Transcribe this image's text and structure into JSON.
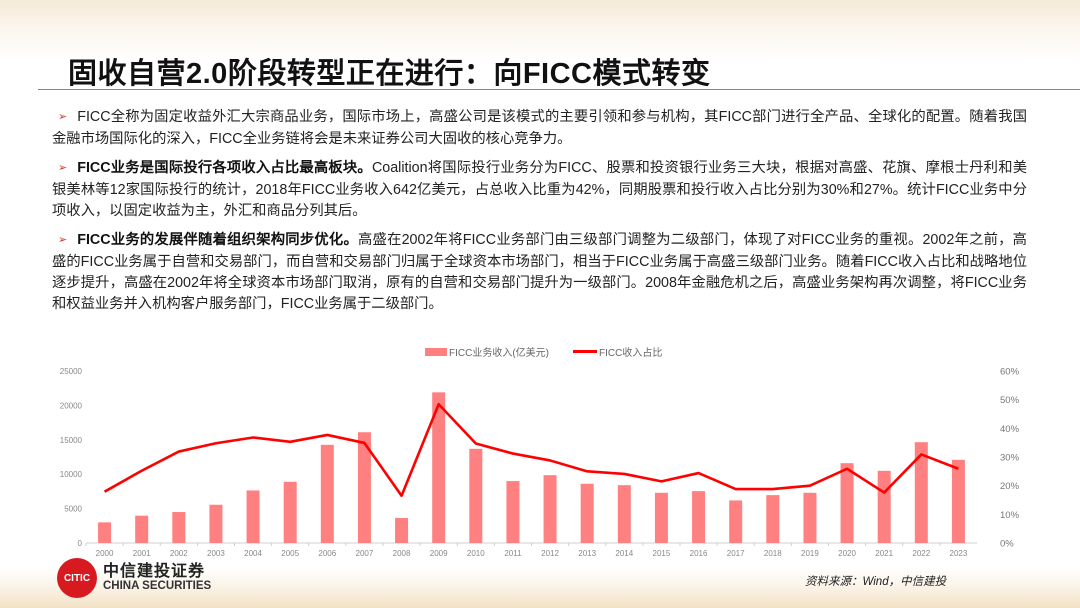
{
  "title": "固收自营2.0阶段转型正在进行：向FICC模式转变",
  "paragraphs": [
    {
      "bold": "",
      "text": "FICC全称为固定收益外汇大宗商品业务，国际市场上，高盛公司是该模式的主要引领和参与机构，其FICC部门进行全产品、全球化的配置。随着我国金融市场国际化的深入，FICC全业务链将会是未来证券公司大固收的核心竞争力。"
    },
    {
      "bold": "FICC业务是国际投行各项收入占比最高板块。",
      "text": "Coalition将国际投行业务分为FICC、股票和投资银行业务三大块，根据对高盛、花旗、摩根士丹利和美银美林等12家国际投行的统计，2018年FICC业务收入642亿美元，占总收入比重为42%，同期股票和投行收入占比分别为30%和27%。统计FICC业务中分项收入，以固定收益为主，外汇和商品分列其后。"
    },
    {
      "bold": "FICC业务的发展伴随着组织架构同步优化。",
      "text": "高盛在2002年将FICC业务部门由三级部门调整为二级部门，体现了对FICC业务的重视。2002年之前，高盛的FICC业务属于自营和交易部门，而自营和交易部门归属于全球资本市场部门，相当于FICC业务属于高盛三级部门业务。随着FICC收入占比和战略地位逐步提升，高盛在2002年将全球资本市场部门取消，原有的自营和交易部门提升为一级部门。2008年金融危机之后，高盛业务架构再次调整，将FICC业务和权益业务并入机构客户服务部门，FICC业务属于二级部门。"
    }
  ],
  "bullet_icon": "arrow-bullet-icon",
  "chart_data": {
    "type": "bar+line",
    "categories": [
      "2000",
      "2001",
      "2002",
      "2003",
      "2004",
      "2005",
      "2006",
      "2007",
      "2008",
      "2009",
      "2010",
      "2011",
      "2012",
      "2013",
      "2014",
      "2015",
      "2016",
      "2017",
      "2018",
      "2019",
      "2020",
      "2021",
      "2022",
      "2023"
    ],
    "series": [
      {
        "name": "FICC业务收入(亿美元)",
        "type": "bar",
        "axis": "left",
        "color": "#ff8080",
        "values": [
          3000,
          3970,
          4500,
          5560,
          7640,
          8900,
          14270,
          16100,
          3630,
          21900,
          13690,
          9000,
          9860,
          8610,
          8410,
          7300,
          7540,
          6190,
          6960,
          7300,
          11600,
          10490,
          14650,
          12090
        ]
      },
      {
        "name": "FICC收入占比",
        "type": "line",
        "axis": "right",
        "color": "#ff0000",
        "values": [
          17.9,
          25.2,
          31.9,
          34.8,
          36.8,
          35.3,
          37.7,
          34.9,
          16.5,
          48.4,
          34.7,
          31.2,
          28.8,
          25.0,
          24.1,
          21.5,
          24.4,
          18.8,
          18.8,
          20.0,
          25.9,
          17.6,
          30.9,
          25.9
        ]
      }
    ],
    "left_axis": {
      "ylim": [
        0,
        25000
      ],
      "ticks": [
        "0",
        "5000",
        "10000",
        "15000",
        "20000",
        "25000"
      ]
    },
    "right_axis": {
      "ylim": [
        0,
        60
      ],
      "ticks": [
        "0%",
        "10%",
        "20%",
        "30%",
        "40%",
        "50%",
        "60%"
      ]
    },
    "grid": false,
    "legend": "top-center"
  },
  "source": "资料来源：Wind，中信建投",
  "logo": {
    "cn": "中信建投证券",
    "en": "CHINA SECURITIES",
    "mark": "CITIC"
  }
}
